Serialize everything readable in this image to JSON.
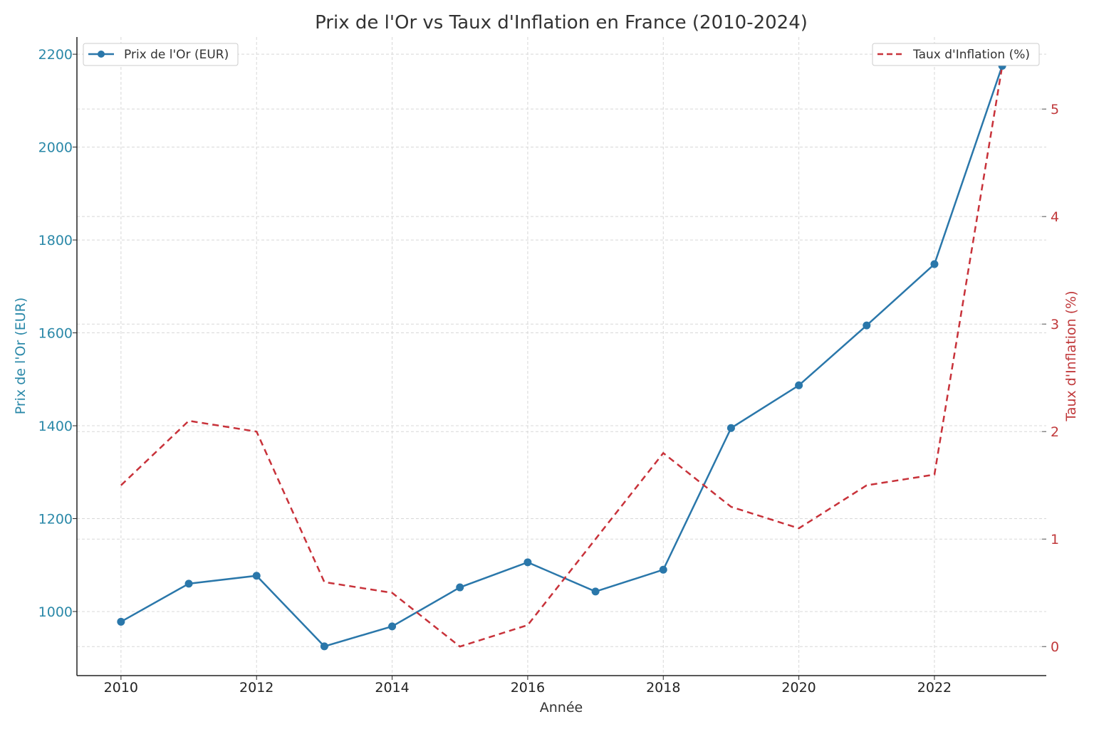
{
  "chart_data": {
    "type": "line",
    "title": "Prix de l'Or vs Taux d'Inflation en France (2010-2024)",
    "xlabel": "Année",
    "ylabel_left": "Prix de l'Or (EUR)",
    "ylabel_right": "Taux d'Inflation (%)",
    "x": [
      2010,
      2011,
      2012,
      2013,
      2014,
      2015,
      2016,
      2017,
      2018,
      2019,
      2020,
      2021,
      2022,
      2023
    ],
    "x_ticks": [
      "2010",
      "2012",
      "2014",
      "2016",
      "2018",
      "2020",
      "2022"
    ],
    "y_left_ticks": [
      "1000",
      "1200",
      "1400",
      "1600",
      "1800",
      "2000",
      "2200"
    ],
    "y_right_ticks": [
      "0",
      "1",
      "2",
      "3",
      "4",
      "5"
    ],
    "xlim": [
      2009.35,
      2023.65
    ],
    "ylim_left": [
      862,
      2237
    ],
    "ylim_right": [
      -0.27,
      5.67
    ],
    "grid": true,
    "series": [
      {
        "name": "Prix de l'Or (EUR)",
        "axis": "left",
        "color": "#2a77aa",
        "style": "solid-markers",
        "legend": "top-left",
        "values": [
          978,
          1060,
          1077,
          925,
          968,
          1052,
          1106,
          1043,
          1090,
          1395,
          1487,
          1616,
          1748,
          2175
        ]
      },
      {
        "name": "Taux d'Inflation (%)",
        "axis": "right",
        "color": "#c8323a",
        "style": "dashed",
        "legend": "top-right",
        "values": [
          1.5,
          2.1,
          2.0,
          0.6,
          0.5,
          0.0,
          0.2,
          1.0,
          1.8,
          1.3,
          1.1,
          1.5,
          1.6,
          5.4
        ]
      }
    ]
  }
}
